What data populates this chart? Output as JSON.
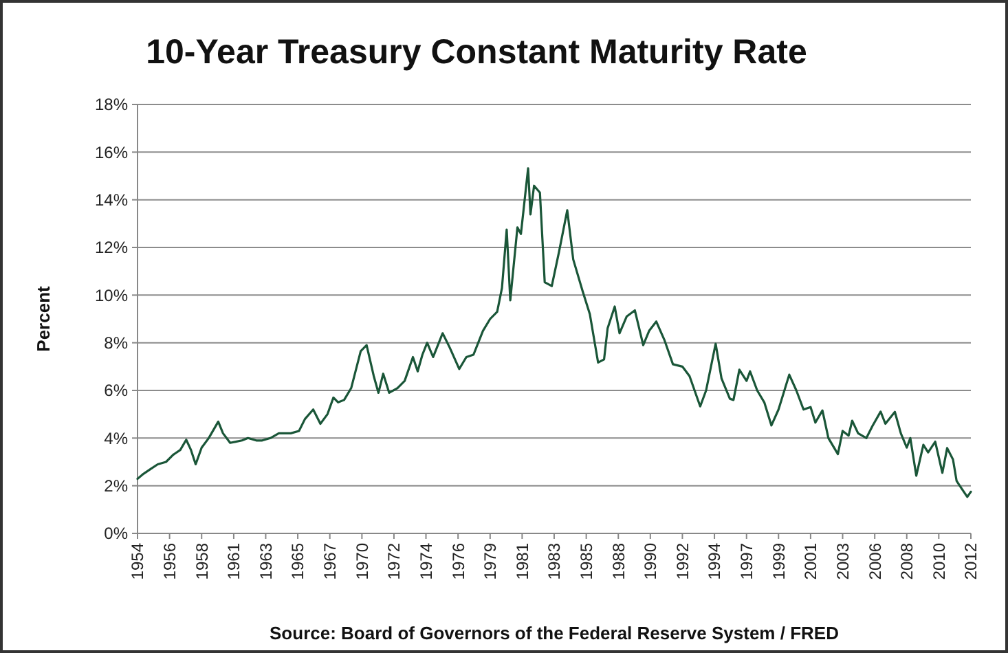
{
  "chart_data": {
    "type": "line",
    "title": "10-Year Treasury Constant Maturity Rate",
    "ylabel": "Percent",
    "annotations": [
      "Source: Board of Governors of the Federal Reserve System / FRED"
    ],
    "x": [
      "1954-04",
      "1954-09",
      "1955-03",
      "1955-09",
      "1956-04",
      "1956-10",
      "1957-04",
      "1957-09",
      "1958-01",
      "1958-05",
      "1958-10",
      "1959-04",
      "1959-12",
      "1960-04",
      "1960-10",
      "1961-02",
      "1961-08",
      "1962-01",
      "1962-08",
      "1963-01",
      "1963-08",
      "1964-03",
      "1965-01",
      "1965-08",
      "1966-01",
      "1966-08",
      "1967-02",
      "1967-08",
      "1968-01",
      "1968-05",
      "1968-10",
      "1969-04",
      "1969-12",
      "1970-05",
      "1970-11",
      "1971-03",
      "1971-07",
      "1971-12",
      "1972-07",
      "1973-01",
      "1973-08",
      "1973-12",
      "1974-04",
      "1974-08",
      "1975-01",
      "1975-09",
      "1976-03",
      "1976-11",
      "1977-05",
      "1977-11",
      "1978-07",
      "1979-01",
      "1979-07",
      "1979-11",
      "1980-03",
      "1980-06",
      "1980-12",
      "1981-03",
      "1981-09",
      "1981-11",
      "1982-02",
      "1982-07",
      "1982-11",
      "1983-05",
      "1983-11",
      "1984-06",
      "1984-11",
      "1985-07",
      "1986-01",
      "1986-08",
      "1987-01",
      "1987-04",
      "1987-10",
      "1988-02",
      "1988-08",
      "1989-03",
      "1989-10",
      "1990-03",
      "1990-09",
      "1991-04",
      "1991-11",
      "1992-07",
      "1993-01",
      "1993-10",
      "1994-03",
      "1994-11",
      "1995-04",
      "1995-11",
      "1996-02",
      "1996-07",
      "1997-01",
      "1997-04",
      "1997-10",
      "1998-04",
      "1998-10",
      "1999-04",
      "2000-01",
      "2000-07",
      "2001-01",
      "2001-07",
      "2001-11",
      "2002-05",
      "2002-10",
      "2003-06",
      "2003-10",
      "2004-03",
      "2004-06",
      "2004-11",
      "2005-06",
      "2005-11",
      "2006-06",
      "2006-10",
      "2007-06",
      "2007-11",
      "2008-04",
      "2008-07",
      "2008-12",
      "2009-06",
      "2009-10",
      "2010-04",
      "2010-10",
      "2011-02",
      "2011-07",
      "2011-10",
      "2012-01",
      "2012-07",
      "2012-10"
    ],
    "series": [
      {
        "color": "#1a5638",
        "values": [
          2.29,
          2.5,
          2.7,
          2.9,
          3.0,
          3.3,
          3.5,
          3.93,
          3.5,
          2.9,
          3.6,
          4.0,
          4.69,
          4.2,
          3.8,
          3.84,
          3.9,
          4.0,
          3.9,
          3.9,
          4.0,
          4.2,
          4.2,
          4.3,
          4.8,
          5.2,
          4.6,
          5.0,
          5.7,
          5.5,
          5.6,
          6.1,
          7.65,
          7.9,
          6.6,
          5.9,
          6.7,
          5.9,
          6.1,
          6.4,
          7.4,
          6.8,
          7.5,
          8.0,
          7.4,
          8.4,
          7.8,
          6.9,
          7.4,
          7.5,
          8.5,
          9.0,
          9.3,
          10.3,
          12.75,
          9.78,
          12.84,
          12.57,
          15.32,
          13.39,
          14.59,
          14.3,
          10.54,
          10.38,
          11.8,
          13.56,
          11.5,
          10.16,
          9.2,
          7.17,
          7.3,
          8.6,
          9.52,
          8.4,
          9.1,
          9.36,
          7.9,
          8.5,
          8.89,
          8.1,
          7.1,
          7.0,
          6.6,
          5.33,
          6.0,
          7.96,
          6.5,
          5.65,
          5.6,
          6.87,
          6.4,
          6.8,
          6.0,
          5.5,
          4.53,
          5.2,
          6.66,
          6.0,
          5.2,
          5.3,
          4.65,
          5.16,
          4.0,
          3.33,
          4.3,
          4.1,
          4.73,
          4.2,
          4.0,
          4.5,
          5.11,
          4.6,
          5.1,
          4.2,
          3.6,
          4.0,
          2.42,
          3.72,
          3.4,
          3.85,
          2.54,
          3.58,
          3.1,
          2.2,
          1.97,
          1.53,
          1.75
        ]
      }
    ],
    "xlim": [
      "1954-04",
      "2012-10"
    ],
    "xticks": [
      {
        "value": "1954-04",
        "label": "1954"
      },
      {
        "value": "1956-07",
        "label": "1956"
      },
      {
        "value": "1958-10",
        "label": "1958"
      },
      {
        "value": "1961-01",
        "label": "1961"
      },
      {
        "value": "1963-04",
        "label": "1963"
      },
      {
        "value": "1965-07",
        "label": "1965"
      },
      {
        "value": "1967-10",
        "label": "1967"
      },
      {
        "value": "1970-01",
        "label": "1970"
      },
      {
        "value": "1972-04",
        "label": "1972"
      },
      {
        "value": "1974-07",
        "label": "1974"
      },
      {
        "value": "1976-10",
        "label": "1976"
      },
      {
        "value": "1979-01",
        "label": "1979"
      },
      {
        "value": "1981-04",
        "label": "1981"
      },
      {
        "value": "1983-07",
        "label": "1983"
      },
      {
        "value": "1985-10",
        "label": "1985"
      },
      {
        "value": "1988-01",
        "label": "1988"
      },
      {
        "value": "1990-04",
        "label": "1990"
      },
      {
        "value": "1992-07",
        "label": "1992"
      },
      {
        "value": "1994-10",
        "label": "1994"
      },
      {
        "value": "1997-01",
        "label": "1997"
      },
      {
        "value": "1999-04",
        "label": "1999"
      },
      {
        "value": "2001-07",
        "label": "2001"
      },
      {
        "value": "2003-10",
        "label": "2003"
      },
      {
        "value": "2006-01",
        "label": "2006"
      },
      {
        "value": "2008-04",
        "label": "2008"
      },
      {
        "value": "2010-07",
        "label": "2010"
      },
      {
        "value": "2012-10",
        "label": "2012"
      }
    ],
    "ylim": [
      0,
      18
    ],
    "yticks": [
      {
        "value": 0,
        "label": "0%"
      },
      {
        "value": 2,
        "label": "2%"
      },
      {
        "value": 4,
        "label": "4%"
      },
      {
        "value": 6,
        "label": "6%"
      },
      {
        "value": 8,
        "label": "8%"
      },
      {
        "value": 10,
        "label": "10%"
      },
      {
        "value": 12,
        "label": "12%"
      },
      {
        "value": 14,
        "label": "14%"
      },
      {
        "value": 16,
        "label": "16%"
      },
      {
        "value": 18,
        "label": "18%"
      }
    ],
    "grid": "y",
    "marker": "none",
    "line_style": "solid"
  }
}
